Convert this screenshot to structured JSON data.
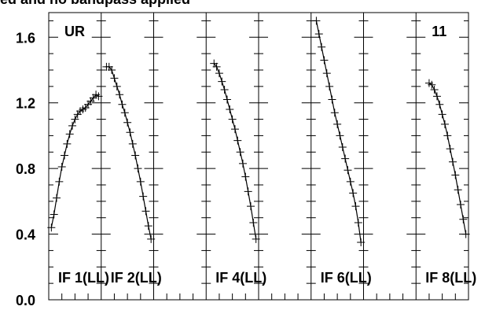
{
  "chart_data": {
    "type": "line",
    "title": "ed and no bandpass applied",
    "ylim": [
      0.0,
      1.75
    ],
    "y_tick_labels": [
      "0.0",
      "0.4",
      "0.8",
      "1.2",
      "1.6"
    ],
    "y_ticks": [
      0.0,
      0.4,
      0.8,
      1.2,
      1.6
    ],
    "grid": false,
    "panel_top_labels": [
      {
        "panel": 0,
        "text": "UR"
      },
      {
        "panel": 7,
        "text": "11"
      }
    ],
    "panel_labels": [
      {
        "panel": 0,
        "text": "IF 1(LL)"
      },
      {
        "panel": 1,
        "text": "IF 2(LL)"
      },
      {
        "panel": 3,
        "text": "IF 4(LL)"
      },
      {
        "panel": 5,
        "text": "IF 6(LL)"
      },
      {
        "panel": 7,
        "text": "IF 8(LL)"
      }
    ],
    "panels": [
      {
        "x": [
          0.05,
          0.1,
          0.15,
          0.2,
          0.25,
          0.3,
          0.35,
          0.4,
          0.45,
          0.5,
          0.55,
          0.6,
          0.65,
          0.7,
          0.75,
          0.8,
          0.85,
          0.9,
          0.95
        ],
        "y": [
          0.44,
          0.52,
          0.62,
          0.72,
          0.81,
          0.88,
          0.95,
          1.01,
          1.06,
          1.1,
          1.13,
          1.15,
          1.16,
          1.17,
          1.19,
          1.21,
          1.23,
          1.25,
          1.24
        ]
      },
      {
        "x": [
          0.1,
          0.15,
          0.2,
          0.25,
          0.3,
          0.35,
          0.4,
          0.45,
          0.5,
          0.55,
          0.6,
          0.65,
          0.7,
          0.75,
          0.8,
          0.85,
          0.9,
          0.95
        ],
        "y": [
          1.42,
          1.42,
          1.4,
          1.35,
          1.3,
          1.25,
          1.19,
          1.14,
          1.08,
          1.02,
          0.95,
          0.88,
          0.8,
          0.72,
          0.63,
          0.54,
          0.45,
          0.37
        ]
      },
      {
        "x": [],
        "y": []
      },
      {
        "x": [
          0.15,
          0.2,
          0.25,
          0.3,
          0.35,
          0.4,
          0.45,
          0.5,
          0.55,
          0.6,
          0.65,
          0.7,
          0.75,
          0.8,
          0.85,
          0.9,
          0.95
        ],
        "y": [
          1.44,
          1.42,
          1.38,
          1.33,
          1.28,
          1.22,
          1.16,
          1.1,
          1.04,
          0.97,
          0.9,
          0.83,
          0.75,
          0.66,
          0.57,
          0.47,
          0.37
        ]
      },
      {
        "x": [],
        "y": []
      },
      {
        "x": [
          0.1,
          0.15,
          0.2,
          0.25,
          0.3,
          0.35,
          0.4,
          0.45,
          0.5,
          0.55,
          0.6,
          0.65,
          0.7,
          0.75,
          0.8,
          0.85,
          0.9,
          0.95
        ],
        "y": [
          1.7,
          1.62,
          1.54,
          1.46,
          1.38,
          1.3,
          1.22,
          1.14,
          1.07,
          1.0,
          0.93,
          0.86,
          0.79,
          0.72,
          0.65,
          0.57,
          0.47,
          0.35
        ]
      },
      {
        "x": [],
        "y": []
      },
      {
        "x": [
          0.25,
          0.3,
          0.35,
          0.4,
          0.45,
          0.5,
          0.55,
          0.6,
          0.65,
          0.7,
          0.75,
          0.8,
          0.85,
          0.9,
          0.95
        ],
        "y": [
          1.32,
          1.31,
          1.28,
          1.24,
          1.19,
          1.13,
          1.07,
          1.0,
          0.92,
          0.84,
          0.76,
          0.67,
          0.58,
          0.49,
          0.4
        ]
      }
    ]
  }
}
